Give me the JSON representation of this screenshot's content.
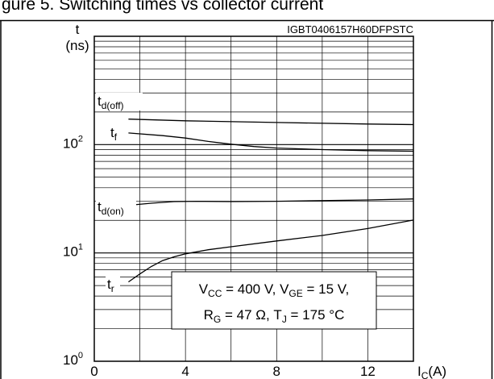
{
  "header_fragment": "gure 5. Switching times vs collector current",
  "chart_id": "IGBT0406157H60DFPSTC",
  "chart_data": {
    "type": "line",
    "y_scale": "log",
    "ylim": [
      1,
      1000
    ],
    "xlim": [
      0,
      14
    ],
    "x_ticks": [
      0,
      4,
      8,
      12
    ],
    "x_tick_labels": [
      "0",
      "4",
      "8",
      "12"
    ],
    "y_ticks": [
      1,
      10,
      100
    ],
    "y_tick_labels": [
      {
        "base": "10",
        "exp": "0"
      },
      {
        "base": "10",
        "exp": "1"
      },
      {
        "base": "10",
        "exp": "2"
      }
    ],
    "ylabel": {
      "top": "t",
      "bottom": "(ns)"
    },
    "xlabel": {
      "main": "I",
      "sub": "C",
      "unit": "(A)"
    },
    "grid": true,
    "series": [
      {
        "name": {
          "main": "t",
          "sub": "d(off)"
        },
        "x": [
          1.5,
          4,
          8,
          12,
          14
        ],
        "y": [
          172,
          166,
          160,
          155,
          153
        ]
      },
      {
        "name": {
          "main": "t",
          "sub": "f"
        },
        "x": [
          1.5,
          3,
          4,
          5,
          6,
          7,
          8,
          10,
          12,
          14
        ],
        "y": [
          128,
          121,
          115,
          107,
          101,
          96,
          93,
          90,
          88,
          87
        ]
      },
      {
        "name": {
          "main": "t",
          "sub": "d(on)"
        },
        "x": [
          1.5,
          2.5,
          3.5,
          4.5,
          6,
          8,
          10,
          12,
          14
        ],
        "y": [
          27.5,
          28.8,
          29.8,
          30.0,
          29.8,
          30.0,
          30.4,
          30.8,
          31.5
        ]
      },
      {
        "name": {
          "main": "t",
          "sub": "r"
        },
        "x": [
          1.5,
          2,
          2.5,
          3,
          3.5,
          4,
          5,
          6,
          8,
          10,
          12,
          14
        ],
        "y": [
          5.4,
          6.4,
          7.5,
          8.5,
          9.2,
          9.8,
          10.7,
          11.4,
          12.9,
          14.5,
          16.8,
          20.1
        ]
      }
    ],
    "annotation": {
      "line1": [
        {
          "t": "V",
          "sub": false
        },
        {
          "t": "CC",
          "sub": true
        },
        {
          "t": " = 400 V, V",
          "sub": false
        },
        {
          "t": "GE",
          "sub": true
        },
        {
          "t": " = 15 V,",
          "sub": false
        }
      ],
      "line2": [
        {
          "t": "R",
          "sub": false
        },
        {
          "t": "G",
          "sub": true
        },
        {
          "t": " = 47 Ω, T",
          "sub": false
        },
        {
          "t": "J",
          "sub": true
        },
        {
          "t": " = 175 °C",
          "sub": false
        }
      ]
    }
  }
}
